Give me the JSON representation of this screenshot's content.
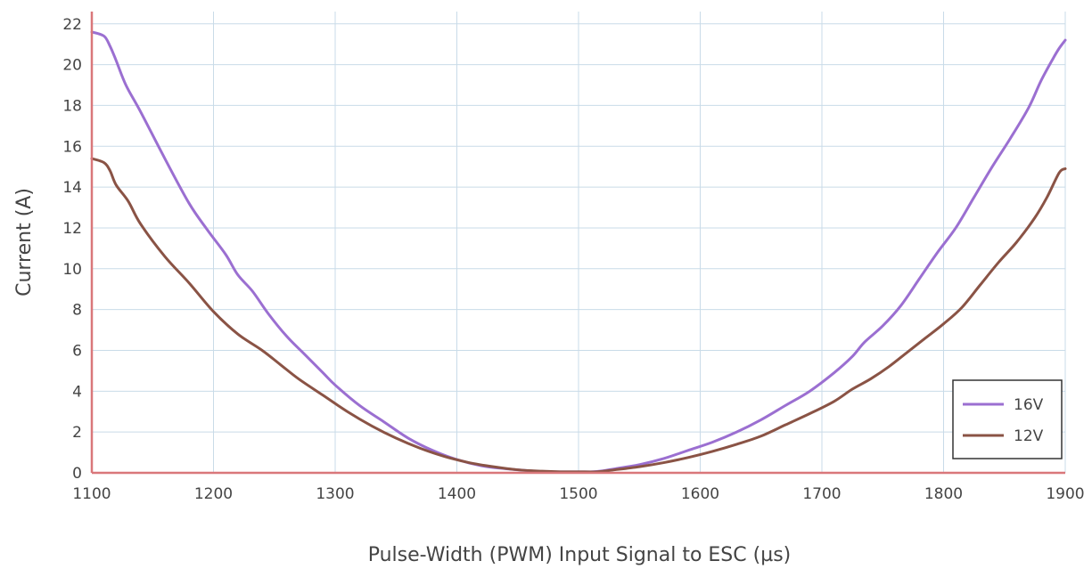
{
  "chart_data": {
    "type": "line",
    "title": "",
    "xlabel": "Pulse-Width (PWM) Input Signal to ESC (µs)",
    "ylabel": "Current (A)",
    "xlim": [
      1100,
      1900
    ],
    "ylim": [
      0,
      22.6
    ],
    "x_ticks": [
      "1100",
      "1200",
      "1300",
      "1400",
      "1500",
      "1600",
      "1700",
      "1800",
      "1900"
    ],
    "y_ticks": [
      "0",
      "2",
      "4",
      "6",
      "8",
      "10",
      "12",
      "14",
      "16",
      "18",
      "20",
      "22"
    ],
    "grid": true,
    "legend_position": "bottom-right",
    "series": [
      {
        "name": "16V",
        "color": "#9b6fd1",
        "x": [
          1100,
          1110,
          1115,
          1120,
          1128,
          1140,
          1160,
          1180,
          1195,
          1210,
          1220,
          1232,
          1245,
          1260,
          1275,
          1290,
          1300,
          1320,
          1340,
          1360,
          1380,
          1400,
          1420,
          1440,
          1460,
          1475,
          1485,
          1500,
          1510,
          1520,
          1530,
          1550,
          1570,
          1590,
          1610,
          1630,
          1650,
          1670,
          1690,
          1710,
          1725,
          1735,
          1750,
          1765,
          1780,
          1795,
          1810,
          1825,
          1840,
          1855,
          1870,
          1880,
          1890,
          1895,
          1900
        ],
        "y": [
          21.6,
          21.4,
          20.9,
          20.2,
          19.0,
          17.7,
          15.4,
          13.2,
          11.9,
          10.7,
          9.7,
          8.9,
          7.8,
          6.7,
          5.8,
          4.9,
          4.3,
          3.3,
          2.5,
          1.7,
          1.1,
          0.65,
          0.35,
          0.2,
          0.1,
          0.05,
          0.05,
          0.05,
          0.05,
          0.1,
          0.2,
          0.4,
          0.7,
          1.1,
          1.5,
          2.0,
          2.6,
          3.3,
          4.0,
          4.9,
          5.7,
          6.4,
          7.2,
          8.2,
          9.5,
          10.8,
          12.0,
          13.5,
          15.0,
          16.4,
          17.9,
          19.2,
          20.3,
          20.8,
          21.2
        ]
      },
      {
        "name": "12V",
        "color": "#8a5345",
        "x": [
          1100,
          1110,
          1115,
          1120,
          1130,
          1140,
          1160,
          1180,
          1200,
          1220,
          1240,
          1255,
          1270,
          1290,
          1310,
          1330,
          1350,
          1370,
          1390,
          1410,
          1430,
          1450,
          1470,
          1485,
          1500,
          1515,
          1530,
          1550,
          1570,
          1590,
          1610,
          1630,
          1650,
          1670,
          1690,
          1710,
          1725,
          1740,
          1755,
          1770,
          1785,
          1800,
          1815,
          1830,
          1845,
          1860,
          1875,
          1885,
          1895,
          1900
        ],
        "y": [
          15.4,
          15.2,
          14.8,
          14.1,
          13.3,
          12.2,
          10.6,
          9.3,
          7.9,
          6.8,
          6.0,
          5.3,
          4.6,
          3.8,
          3.0,
          2.3,
          1.7,
          1.2,
          0.8,
          0.5,
          0.3,
          0.15,
          0.08,
          0.05,
          0.05,
          0.05,
          0.15,
          0.3,
          0.5,
          0.75,
          1.05,
          1.4,
          1.8,
          2.35,
          2.9,
          3.5,
          4.1,
          4.6,
          5.2,
          5.9,
          6.6,
          7.3,
          8.1,
          9.2,
          10.3,
          11.3,
          12.5,
          13.5,
          14.7,
          14.9
        ]
      }
    ]
  }
}
